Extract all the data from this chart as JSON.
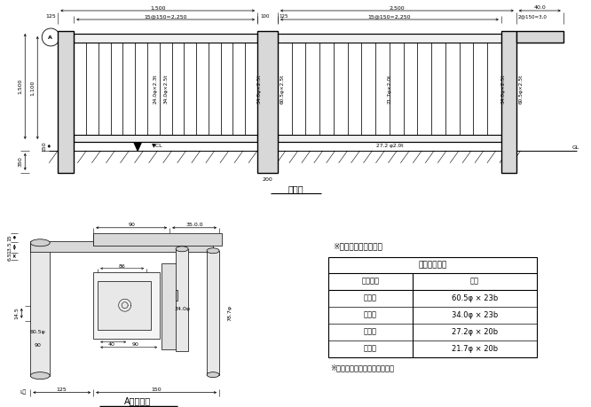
{
  "bg_color": "#ffffff",
  "table_title": "使用鋼管寸法",
  "table_header": [
    "使用箇所",
    "寸法"
  ],
  "table_rows": [
    [
      "脚　柱",
      "60.5φ × 23b"
    ],
    [
      "笠　木",
      "34.0φ × 23b"
    ],
    [
      "横　桁",
      "27.2φ × 20b"
    ],
    [
      "格　子",
      "21.7φ × 20b"
    ]
  ],
  "note1": "※基礎は参考とする。",
  "note2": "※アエンメッキ仕上げとする。",
  "title_elevation": "平面図",
  "title_detail": "A部詳細図"
}
